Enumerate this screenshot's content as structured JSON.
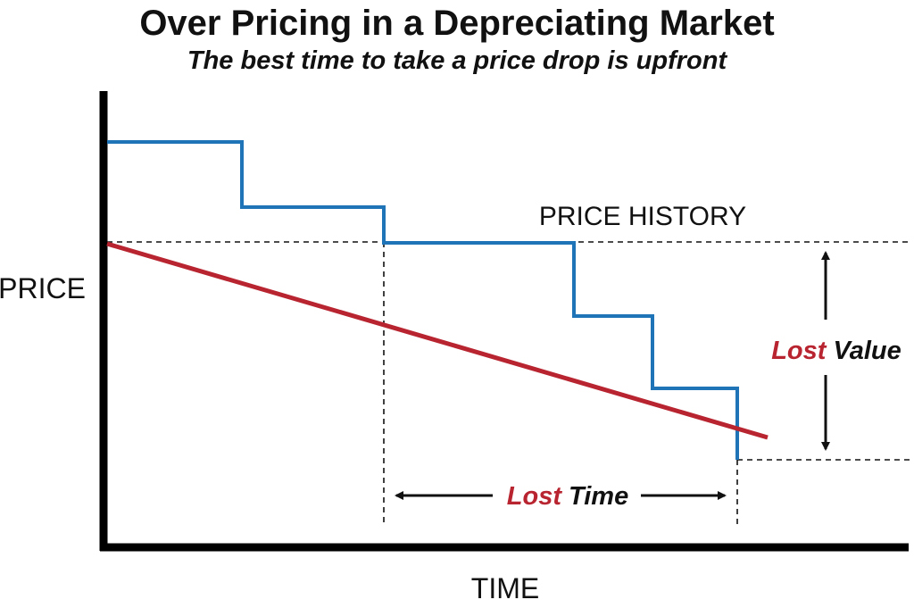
{
  "title": "Over Pricing in a Depreciating Market",
  "subtitle": "The best time to take a price drop is upfront",
  "axes": {
    "y_label": "PRICE",
    "x_label": "TIME"
  },
  "labels": {
    "price_history": "PRICE HISTORY",
    "lost_value_accent": "Lost",
    "lost_value_rest": " Value",
    "lost_time_accent": "Lost",
    "lost_time_rest": " Time"
  },
  "colors": {
    "price_history_line": "#1f74b8",
    "value_line": "#b8242f",
    "accent_text": "#b8242f",
    "axis": "#000000"
  }
}
